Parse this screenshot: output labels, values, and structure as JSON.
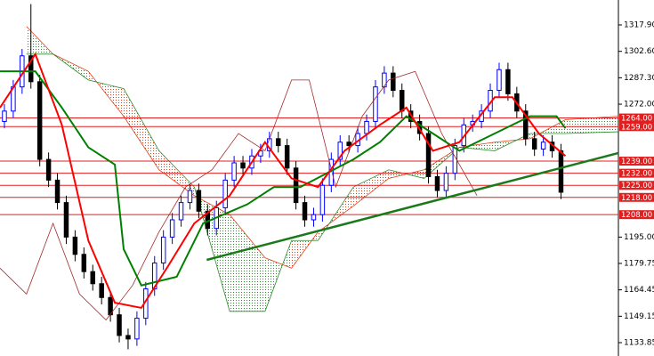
{
  "chart_data": {
    "type": "candlestick",
    "ylim": [
      1126.12,
      1332.34
    ],
    "xlim": [
      0,
      70
    ],
    "yticks": [
      {
        "value": 1317.9,
        "label": "1317.90"
      },
      {
        "value": 1302.6,
        "label": "1302.60"
      },
      {
        "value": 1287.3,
        "label": "1287.30"
      },
      {
        "value": 1272,
        "label": "1272.00"
      },
      {
        "value": 1195,
        "label": "1195.00"
      },
      {
        "value": 1179.75,
        "label": "1179.75"
      },
      {
        "value": 1164.45,
        "label": "1164.45"
      },
      {
        "value": 1149.15,
        "label": "1149.15"
      },
      {
        "value": 1133.85,
        "label": "1133.85"
      }
    ],
    "up_color": "#0000ff",
    "down_color": "#000000",
    "open": [
      1262,
      1268,
      1282,
      1300,
      1285,
      1240,
      1228,
      1215,
      1195,
      1185,
      1175,
      1168,
      1160,
      1150,
      1138,
      1136,
      1148,
      1165,
      1180,
      1195,
      1205,
      1215,
      1222,
      1210,
      1200,
      1212,
      1228,
      1238,
      1235,
      1242,
      1245,
      1252,
      1248,
      1235,
      1215,
      1205,
      1208,
      1225,
      1240,
      1250,
      1248,
      1255,
      1262,
      1282,
      1290,
      1280,
      1268,
      1262,
      1255,
      1230,
      1222,
      1232,
      1248,
      1260,
      1262,
      1268,
      1280,
      1292,
      1278,
      1268,
      1252,
      1246,
      1250,
      1245
    ],
    "high": [
      1272,
      1286,
      1304,
      1330,
      1289,
      1244,
      1232,
      1219,
      1199,
      1189,
      1179,
      1172,
      1164,
      1154,
      1142,
      1152,
      1169,
      1184,
      1199,
      1209,
      1219,
      1226,
      1226,
      1214,
      1216,
      1232,
      1242,
      1242,
      1246,
      1249,
      1256,
      1256,
      1252,
      1239,
      1219,
      1212,
      1229,
      1244,
      1254,
      1254,
      1259,
      1266,
      1286,
      1294,
      1294,
      1284,
      1272,
      1266,
      1259,
      1234,
      1236,
      1252,
      1264,
      1266,
      1272,
      1284,
      1296,
      1296,
      1282,
      1272,
      1256,
      1254,
      1254,
      1249
    ],
    "low": [
      1258,
      1264,
      1278,
      1281,
      1236,
      1224,
      1211,
      1191,
      1181,
      1171,
      1164,
      1156,
      1146,
      1134,
      1130,
      1132,
      1144,
      1161,
      1176,
      1191,
      1201,
      1211,
      1206,
      1196,
      1196,
      1208,
      1224,
      1231,
      1231,
      1238,
      1241,
      1244,
      1231,
      1211,
      1201,
      1201,
      1204,
      1221,
      1236,
      1244,
      1244,
      1251,
      1258,
      1278,
      1276,
      1264,
      1258,
      1251,
      1226,
      1218,
      1218,
      1228,
      1244,
      1256,
      1258,
      1264,
      1276,
      1274,
      1264,
      1248,
      1242,
      1242,
      1241,
      1217
    ],
    "close": [
      1268,
      1282,
      1300,
      1285,
      1240,
      1228,
      1215,
      1195,
      1185,
      1175,
      1168,
      1160,
      1150,
      1138,
      1136,
      1148,
      1165,
      1180,
      1195,
      1205,
      1215,
      1222,
      1210,
      1200,
      1212,
      1228,
      1238,
      1235,
      1242,
      1245,
      1252,
      1248,
      1235,
      1215,
      1205,
      1208,
      1225,
      1240,
      1250,
      1248,
      1255,
      1262,
      1282,
      1290,
      1280,
      1268,
      1262,
      1255,
      1230,
      1222,
      1232,
      1248,
      1260,
      1262,
      1268,
      1280,
      1292,
      1278,
      1268,
      1252,
      1246,
      1250,
      1245,
      1221
    ],
    "cloud": {
      "up_color": "#2e8b2e",
      "down_color": "#e0401a",
      "x": [
        3,
        6,
        10,
        14,
        18,
        22,
        26,
        30,
        33,
        36,
        40,
        44,
        48,
        52,
        56,
        60,
        64,
        70
      ],
      "span_a": [
        1317,
        1301,
        1291,
        1265,
        1234,
        1219,
        1208,
        1183,
        1177,
        1198,
        1213,
        1229,
        1234,
        1247,
        1250,
        1252,
        1263,
        1265
      ],
      "span_b": [
        1301,
        1301,
        1286,
        1281,
        1245,
        1224,
        1152,
        1152,
        1193,
        1193,
        1224,
        1234,
        1229,
        1247,
        1245,
        1255,
        1255,
        1256
      ]
    },
    "overlays": [
      {
        "color": "#a52a2a",
        "width": 0.8,
        "x": [
          0,
          3,
          6,
          9,
          12,
          15,
          18,
          21,
          24,
          27,
          30,
          33,
          35,
          38,
          41,
          44,
          47,
          50,
          54
        ],
        "values": [
          1177,
          1162,
          1203,
          1162,
          1147,
          1167,
          1198,
          1224,
          1234,
          1255,
          1245,
          1286,
          1286,
          1224,
          1265,
          1286,
          1291,
          1255,
          1219
        ]
      },
      {
        "color": "#008000",
        "width": 2,
        "x": [
          0,
          4,
          7,
          10,
          13,
          14,
          16,
          20,
          23,
          28,
          31,
          34,
          40,
          43,
          46,
          49,
          52,
          56,
          60,
          63,
          64
        ],
        "values": [
          1291,
          1291,
          1270,
          1247,
          1237,
          1188,
          1167,
          1172,
          1203,
          1214,
          1224,
          1224,
          1240,
          1250,
          1265,
          1255,
          1245,
          1255,
          1265,
          1265,
          1258
        ]
      },
      {
        "color": "#ff0000",
        "width": 2,
        "x": [
          0,
          4,
          7,
          10,
          13,
          16,
          19,
          22,
          26,
          30,
          33,
          36,
          39,
          43,
          46,
          49,
          52,
          56,
          58,
          61,
          64
        ],
        "values": [
          1270,
          1301,
          1260,
          1193,
          1157,
          1154,
          1178,
          1203,
          1219,
          1250,
          1229,
          1224,
          1245,
          1260,
          1270,
          1245,
          1250,
          1276,
          1276,
          1255,
          1242
        ]
      }
    ],
    "trendline": {
      "color": "#1a7a1a",
      "x": [
        23.4,
        70
      ],
      "values": [
        1181.8,
        1243.7
      ]
    },
    "level_color": "#e02020",
    "levels": [
      {
        "value": 1264,
        "label": "1264.00"
      },
      {
        "value": 1259,
        "label": "1259.00"
      },
      {
        "value": 1239,
        "label": "1239.00"
      },
      {
        "value": 1232,
        "label": "1232.00"
      },
      {
        "value": 1225,
        "label": "1225.00"
      },
      {
        "value": 1218,
        "label": "1218.00"
      },
      {
        "value": 1208,
        "label": "1208.00"
      }
    ]
  }
}
